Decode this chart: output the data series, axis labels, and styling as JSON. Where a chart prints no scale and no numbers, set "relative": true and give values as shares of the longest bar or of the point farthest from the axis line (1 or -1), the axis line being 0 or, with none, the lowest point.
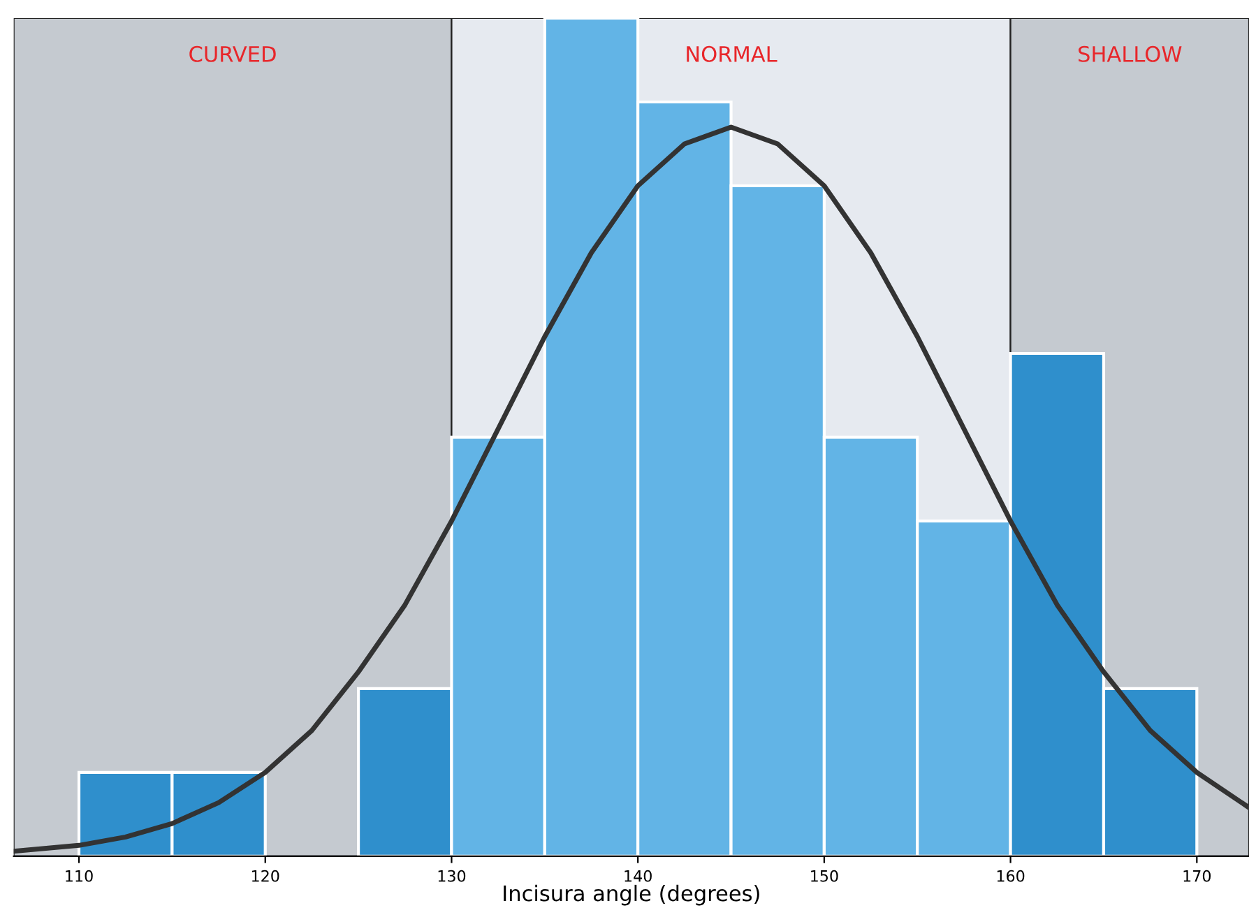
{
  "chart_data": {
    "type": "histogram",
    "relative": true,
    "xlabel": "Incisura angle (degrees)",
    "bins": [
      110,
      115,
      120,
      125,
      130,
      135,
      140,
      145,
      150,
      155,
      160,
      165,
      170
    ],
    "values": [
      0.1,
      0.1,
      0,
      0.2,
      0.5,
      1,
      0.9,
      0.8,
      0.5,
      0.4,
      0.6,
      0.2
    ],
    "colors": [
      "#2f8fcc",
      "#2f8fcc",
      "#2f8fcc",
      "#2f8fcc",
      "#62b4e6",
      "#62b4e6",
      "#62b4e6",
      "#62b4e6",
      "#62b4e6",
      "#62b4e6",
      "#2f8fcc",
      "#2f8fcc"
    ],
    "series": [
      {
        "type": "line",
        "color": "#333333",
        "x": [
          106.5,
          110,
          112.5,
          115,
          117.5,
          120,
          122.5,
          125,
          127.5,
          130,
          132.5,
          135,
          137.5,
          140,
          142.5,
          145,
          147.5,
          150,
          152.5,
          155,
          157.5,
          160,
          162.5,
          165,
          167.5,
          170,
          172.8
        ],
        "values": [
          0.006,
          0.013,
          0.023,
          0.039,
          0.064,
          0.1,
          0.15,
          0.22,
          0.3,
          0.4,
          0.51,
          0.62,
          0.72,
          0.8,
          0.85,
          0.87,
          0.85,
          0.8,
          0.72,
          0.62,
          0.51,
          0.4,
          0.3,
          0.22,
          0.15,
          0.1,
          0.058
        ]
      }
    ],
    "bands": [
      {
        "axis": "x",
        "from": 106.5,
        "to": 130,
        "label": "CURVED",
        "color": "#c5cad0"
      },
      {
        "axis": "x",
        "from": 130,
        "to": 160,
        "label": "NORMAL",
        "color": "#e6eaf0"
      },
      {
        "axis": "x",
        "from": 160,
        "to": 172.8,
        "label": "SHALLOW",
        "color": "#c5cad0"
      }
    ],
    "xlim": [
      106.5,
      172.8
    ],
    "xticks": [
      110,
      120,
      130,
      140,
      150,
      160,
      170
    ],
    "legend": false
  }
}
